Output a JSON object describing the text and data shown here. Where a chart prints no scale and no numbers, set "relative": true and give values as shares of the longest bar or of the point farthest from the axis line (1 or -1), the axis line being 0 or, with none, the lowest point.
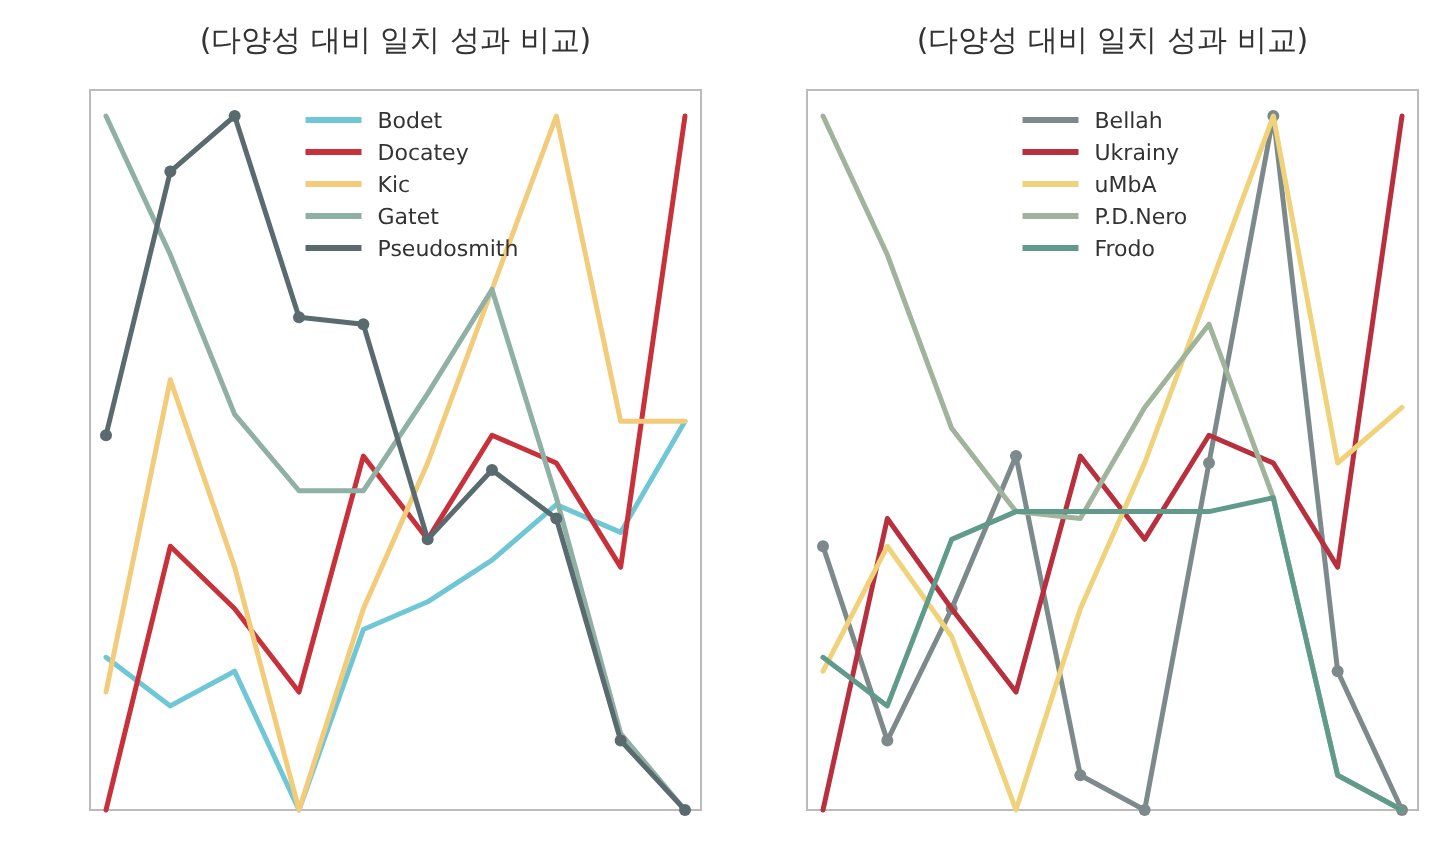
{
  "chart_data": [
    {
      "type": "line",
      "title": "(다양성 대비 일치 성과 비교)",
      "relative": true,
      "legend": "top",
      "categories": [
        null,
        null,
        null,
        null,
        null,
        null,
        null,
        null,
        null,
        null
      ],
      "series": [
        {
          "name": "Bodet",
          "color": "#6fc7d6",
          "values": [
            0.22,
            0.15,
            0.2,
            0,
            0.26,
            0.3,
            0.36,
            0.44,
            0.4,
            0.56
          ]
        },
        {
          "name": "Docatey",
          "color": "#c8303a",
          "values": [
            0,
            0.38,
            0.29,
            0.17,
            0.51,
            0.39,
            0.54,
            0.5,
            0.35,
            1.0
          ]
        },
        {
          "name": "Kic",
          "color": "#f2cc7a",
          "values": [
            0.17,
            0.62,
            0.35,
            0,
            0.29,
            0.5,
            0.75,
            1.0,
            0.56,
            0.56
          ]
        },
        {
          "name": "Gatet",
          "color": "#8fb0a4",
          "values": [
            1.0,
            0.8,
            0.57,
            0.46,
            0.46,
            0.6,
            0.75,
            0.45,
            0.11,
            0
          ]
        },
        {
          "name": "Pseudosmith",
          "color": "#5a6b70",
          "marker": "circle",
          "values": [
            0.54,
            0.92,
            1.0,
            0.71,
            0.7,
            0.39,
            0.49,
            0.42,
            0.1,
            0
          ]
        }
      ]
    },
    {
      "type": "line",
      "title": "(다양성 대비 일치 성과 비교)",
      "relative": true,
      "legend": "top",
      "categories": [
        null,
        null,
        null,
        null,
        null,
        null,
        null,
        null,
        null,
        null
      ],
      "series": [
        {
          "name": "Bellah",
          "color": "#7d8a8c",
          "marker": "circle",
          "values": [
            0.38,
            0.1,
            0.29,
            0.51,
            0.05,
            0,
            0.5,
            1.0,
            0.2,
            0
          ]
        },
        {
          "name": "Ukrainy",
          "color": "#b8303e",
          "values": [
            0,
            0.42,
            0.29,
            0.17,
            0.51,
            0.39,
            0.54,
            0.5,
            0.35,
            1.0
          ]
        },
        {
          "name": "uMbA",
          "color": "#f0d27a",
          "values": [
            0.2,
            0.38,
            0.25,
            0,
            0.29,
            0.5,
            0.75,
            1.0,
            0.5,
            0.58
          ]
        },
        {
          "name": "P.D.Nero",
          "color": "#9fb49a",
          "values": [
            1.0,
            0.8,
            0.55,
            0.43,
            0.42,
            0.58,
            0.7,
            0.45,
            0.05,
            0
          ]
        },
        {
          "name": "Frodo",
          "color": "#5f9a8a",
          "values": [
            0.22,
            0.15,
            0.39,
            0.43,
            0.43,
            0.43,
            0.43,
            0.45,
            0.05,
            0
          ]
        }
      ]
    }
  ]
}
